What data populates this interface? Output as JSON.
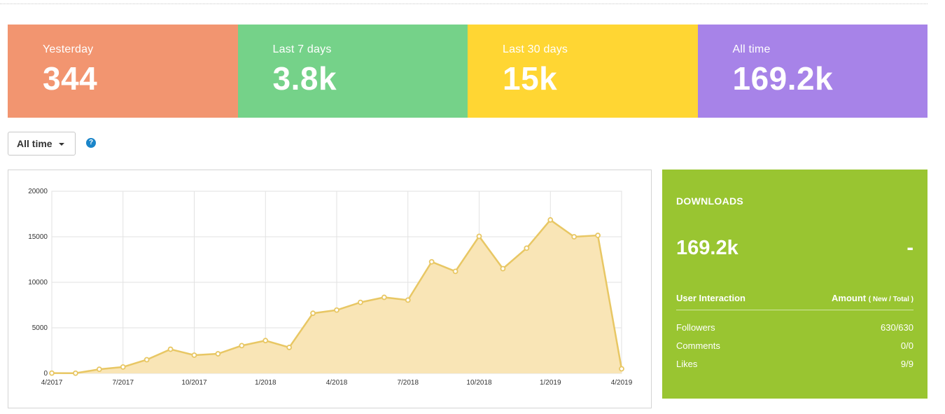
{
  "stats": [
    {
      "label": "Yesterday",
      "value": "344",
      "color": "#f29570"
    },
    {
      "label": "Last 7 days",
      "value": "3.8k",
      "color": "#75d289"
    },
    {
      "label": "Last 30 days",
      "value": "15k",
      "color": "#ffd633"
    },
    {
      "label": "All time",
      "value": "169.2k",
      "color": "#a783e8"
    }
  ],
  "range_selector": {
    "label": "All time",
    "icon": "caret-down-icon"
  },
  "help": {
    "glyph": "?",
    "icon": "question-circle-icon"
  },
  "downloads_panel": {
    "title": "DOWNLOADS",
    "total": "169.2k",
    "change": "-",
    "header_left": "User Interaction",
    "header_right": "Amount",
    "header_right_sub": "( New / Total )",
    "rows": [
      {
        "label": "Followers",
        "value": "630/630"
      },
      {
        "label": "Comments",
        "value": "0/0"
      },
      {
        "label": "Likes",
        "value": "9/9"
      }
    ],
    "color": "#99c531"
  },
  "chart_data": {
    "type": "area",
    "x": [
      "4/2017",
      "5/2017",
      "6/2017",
      "7/2017",
      "8/2017",
      "9/2017",
      "10/2017",
      "11/2017",
      "12/2017",
      "1/2018",
      "2/2018",
      "3/2018",
      "4/2018",
      "5/2018",
      "6/2018",
      "7/2018",
      "8/2018",
      "9/2018",
      "10/2018",
      "11/2018",
      "12/2018",
      "1/2019",
      "2/2019",
      "3/2019",
      "4/2019"
    ],
    "values": [
      30,
      20,
      450,
      700,
      1500,
      2650,
      2000,
      2150,
      3050,
      3600,
      2850,
      6600,
      6950,
      7800,
      8350,
      8050,
      12250,
      11200,
      15050,
      11500,
      13750,
      16850,
      15000,
      15150,
      500
    ],
    "x_tick_labels": [
      "4/2017",
      "7/2017",
      "10/2017",
      "1/2018",
      "4/2018",
      "7/2018",
      "10/2018",
      "1/2019",
      "4/2019"
    ],
    "y_ticks": [
      0,
      5000,
      10000,
      15000,
      20000
    ],
    "ylim": [
      0,
      20000
    ],
    "grid": true,
    "line_color": "#e8c764",
    "fill_color": "#f9e5b6"
  }
}
